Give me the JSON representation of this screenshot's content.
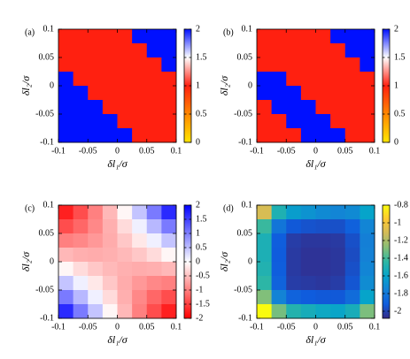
{
  "chart_data": [
    {
      "type": "heatmap",
      "panel_label": "(a)",
      "xlabel": "δl₁/σ",
      "ylabel": "δl₂/σ",
      "x": [
        -0.0875,
        -0.0625,
        -0.0375,
        -0.0125,
        0.0125,
        0.0375,
        0.0625,
        0.0875
      ],
      "y": [
        0.0875,
        0.0625,
        0.0375,
        0.0125,
        -0.0125,
        -0.0375,
        -0.0625,
        -0.0875
      ],
      "z": [
        [
          1,
          1,
          1,
          1,
          1,
          2,
          2,
          2
        ],
        [
          1,
          1,
          1,
          1,
          1,
          1,
          2,
          2
        ],
        [
          1,
          1,
          1,
          1,
          1,
          1,
          1,
          2
        ],
        [
          2,
          1,
          1,
          1,
          1,
          1,
          1,
          1
        ],
        [
          2,
          2,
          1,
          1,
          1,
          1,
          1,
          1
        ],
        [
          2,
          2,
          2,
          1,
          1,
          1,
          1,
          1
        ],
        [
          2,
          2,
          2,
          2,
          1,
          1,
          1,
          1
        ],
        [
          2,
          2,
          2,
          2,
          2,
          1,
          1,
          1
        ]
      ],
      "xlim": [
        -0.1,
        0.1
      ],
      "ylim": [
        -0.1,
        0.1
      ],
      "xticks": [
        -0.1,
        -0.05,
        0,
        0.05,
        0.1
      ],
      "yticks": [
        -0.1,
        -0.05,
        0,
        0.05,
        0.1
      ],
      "zlim": [
        0,
        2
      ],
      "zticks": [
        0,
        0.5,
        1,
        1.5,
        2
      ],
      "colorscale": [
        "#ffe600",
        "#ff8800",
        "#ff2010",
        "#ffffff",
        "#0010ff"
      ]
    },
    {
      "type": "heatmap",
      "panel_label": "(b)",
      "xlabel": "δl₁/σ",
      "ylabel": "δl₂/σ",
      "x": [
        -0.0875,
        -0.0625,
        -0.0375,
        -0.0125,
        0.0125,
        0.0375,
        0.0625,
        0.0875
      ],
      "y": [
        0.0875,
        0.0625,
        0.0375,
        0.0125,
        -0.0125,
        -0.0375,
        -0.0625,
        -0.0875
      ],
      "z": [
        [
          1,
          1,
          1,
          1,
          1,
          2,
          2,
          2
        ],
        [
          1,
          1,
          1,
          1,
          1,
          1,
          2,
          2
        ],
        [
          1,
          1,
          1,
          1,
          1,
          1,
          1,
          2
        ],
        [
          2,
          2,
          1,
          1,
          1,
          1,
          1,
          1
        ],
        [
          2,
          2,
          2,
          1,
          1,
          1,
          1,
          1
        ],
        [
          1,
          2,
          2,
          2,
          1,
          1,
          1,
          1
        ],
        [
          1,
          1,
          2,
          2,
          2,
          1,
          1,
          1
        ],
        [
          1,
          1,
          1,
          2,
          2,
          2,
          1,
          1
        ]
      ],
      "xlim": [
        -0.1,
        0.1
      ],
      "ylim": [
        -0.1,
        0.1
      ],
      "xticks": [
        -0.1,
        -0.05,
        0,
        0.05,
        0.1
      ],
      "yticks": [
        -0.1,
        -0.05,
        0,
        0.05,
        0.1
      ],
      "zlim": [
        0,
        2
      ],
      "zticks": [
        0,
        0.5,
        1,
        1.5,
        2
      ],
      "colorscale": [
        "#ffe600",
        "#ff8800",
        "#ff2010",
        "#ffffff",
        "#0010ff"
      ]
    },
    {
      "type": "heatmap",
      "panel_label": "(c)",
      "xlabel": "δl₁/σ",
      "ylabel": "δl₂/σ",
      "x": [
        -0.0875,
        -0.0625,
        -0.0375,
        -0.0125,
        0.0125,
        0.0375,
        0.0625,
        0.0875
      ],
      "y": [
        0.0875,
        0.0625,
        0.0375,
        0.0125,
        -0.0125,
        -0.0375,
        -0.0625,
        -0.0875
      ],
      "z": [
        [
          -1.75,
          -1.4,
          -1.0,
          -0.56,
          -0.07,
          0.46,
          1.04,
          1.67
        ],
        [
          -1.4,
          -1.19,
          -0.93,
          -0.63,
          -0.28,
          0.12,
          0.56,
          1.04
        ],
        [
          -1.0,
          -0.93,
          -0.81,
          -0.65,
          -0.44,
          -0.18,
          0.12,
          0.46
        ],
        [
          -0.56,
          -0.63,
          -0.65,
          -0.62,
          -0.55,
          -0.44,
          -0.28,
          -0.07
        ],
        [
          -0.07,
          -0.28,
          -0.44,
          -0.55,
          -0.62,
          -0.65,
          -0.63,
          -0.56
        ],
        [
          0.46,
          0.12,
          -0.18,
          -0.44,
          -0.65,
          -0.81,
          -0.93,
          -1.0
        ],
        [
          1.04,
          0.56,
          0.12,
          -0.28,
          -0.63,
          -0.93,
          -1.19,
          -1.4
        ],
        [
          1.67,
          1.04,
          0.46,
          -0.07,
          -0.56,
          -1.0,
          -1.4,
          -1.75
        ]
      ],
      "xlim": [
        -0.1,
        0.1
      ],
      "ylim": [
        -0.1,
        0.1
      ],
      "xticks": [
        -0.1,
        -0.05,
        0,
        0.05,
        0.1
      ],
      "yticks": [
        -0.1,
        -0.05,
        0,
        0.05,
        0.1
      ],
      "zlim": [
        -2,
        2
      ],
      "zticks": [
        -2,
        -1.5,
        -1,
        -0.5,
        0,
        0.5,
        1,
        1.5,
        2
      ],
      "colorscale": [
        "#ff0000",
        "#ffffff",
        "#0000ff"
      ]
    },
    {
      "type": "heatmap",
      "panel_label": "(d)",
      "xlabel": "δl₁/σ",
      "ylabel": "δl₂/σ",
      "x": [
        -0.0875,
        -0.0625,
        -0.0375,
        -0.0125,
        0.0125,
        0.0375,
        0.0625,
        0.0875
      ],
      "y": [
        0.0875,
        0.0625,
        0.0375,
        0.0125,
        -0.0125,
        -0.0375,
        -0.0625,
        -0.0875
      ],
      "z": [
        [
          -1.1,
          -1.5,
          -1.63,
          -1.68,
          -1.72,
          -1.74,
          -1.72,
          -1.6
        ],
        [
          -1.42,
          -1.81,
          -1.93,
          -1.95,
          -1.96,
          -1.96,
          -1.9,
          -1.74
        ],
        [
          -1.51,
          -1.91,
          -2.02,
          -2.04,
          -2.04,
          -2.03,
          -1.96,
          -1.77
        ],
        [
          -1.51,
          -1.92,
          -2.03,
          -2.05,
          -2.05,
          -2.04,
          -1.97,
          -1.76
        ],
        [
          -1.49,
          -1.91,
          -2.03,
          -2.05,
          -2.05,
          -2.04,
          -1.96,
          -1.74
        ],
        [
          -1.45,
          -1.89,
          -2.02,
          -2.03,
          -2.04,
          -2.02,
          -1.94,
          -1.71
        ],
        [
          -1.29,
          -1.75,
          -1.89,
          -1.92,
          -1.93,
          -1.93,
          -1.85,
          -1.6
        ],
        [
          -0.8,
          -1.31,
          -1.48,
          -1.53,
          -1.57,
          -1.59,
          -1.53,
          -1.3
        ]
      ],
      "xlim": [
        -0.1,
        0.1
      ],
      "ylim": [
        -0.1,
        0.1
      ],
      "xticks": [
        -0.1,
        -0.05,
        0,
        0.05,
        0.1
      ],
      "yticks": [
        -0.1,
        -0.05,
        0,
        0.05,
        0.1
      ],
      "zlim": [
        -2.08,
        -0.8
      ],
      "zticks": [
        -0.8,
        -1,
        -1.2,
        -1.4,
        -1.6,
        -1.8,
        -2
      ],
      "colorscale": [
        "#352a87",
        "#0f5cdd",
        "#1481d6",
        "#06a4ca",
        "#2eb7a4",
        "#87bf77",
        "#d1bb59",
        "#fec832",
        "#f9fb0e"
      ]
    }
  ]
}
